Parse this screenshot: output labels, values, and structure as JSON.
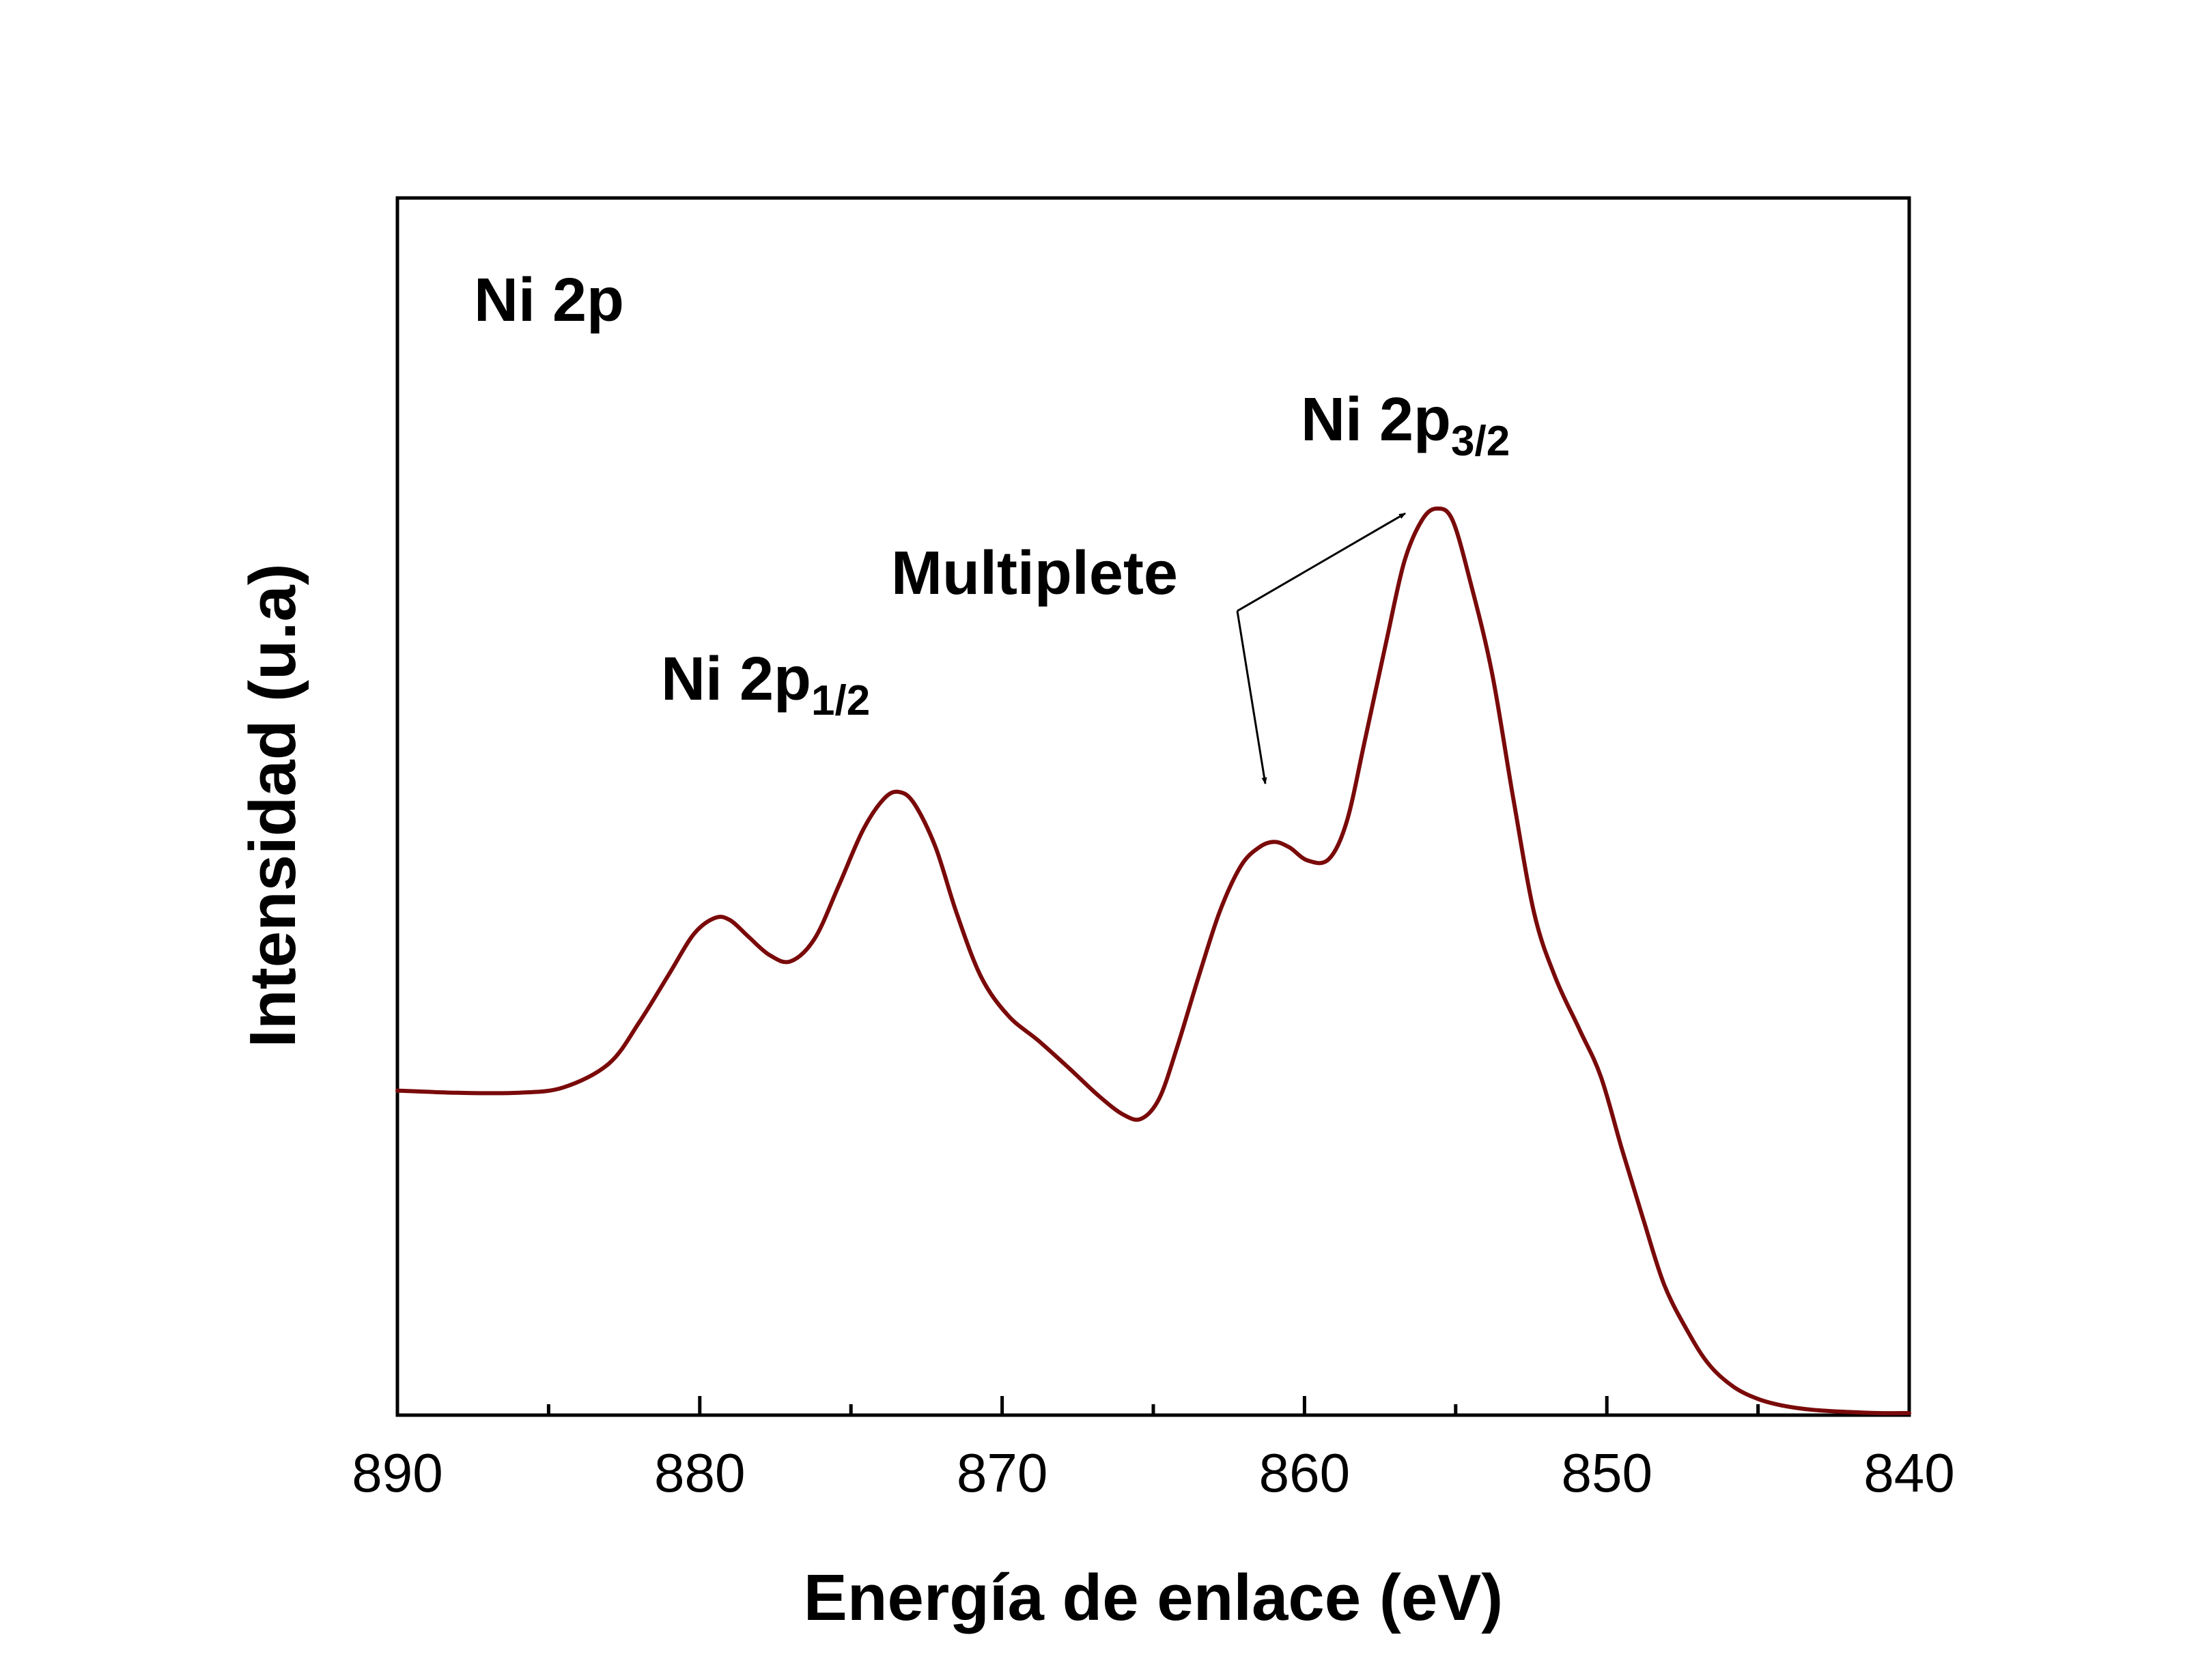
{
  "chart_data": {
    "type": "line",
    "title": "",
    "xlabel": "Energía de enlace (eV)",
    "ylabel": "Intensidad (u.a)",
    "xlim": [
      890,
      840
    ],
    "x_reversed": true,
    "y_ticks_shown": false,
    "grid": false,
    "legend": "none",
    "xticks": [
      "890",
      "880",
      "870",
      "860",
      "850",
      "840"
    ],
    "series": [
      {
        "color": "#7a0a0a",
        "x": [
          890,
          888,
          886,
          884.5,
          883,
          882,
          881,
          880.2,
          879.5,
          879,
          878.4,
          877.7,
          877,
          876.2,
          875.4,
          874.6,
          873.9,
          873.4,
          872.9,
          872.2,
          871.5,
          870.7,
          869.8,
          868.8,
          867.8,
          866.8,
          866,
          865.4,
          864.8,
          864.2,
          863.5,
          862.8,
          862.1,
          861.5,
          861,
          860.5,
          859.9,
          859.2,
          858.6,
          858,
          857.3,
          856.7,
          856.1,
          855.6,
          855.1,
          854.5,
          853.8,
          853.1,
          852.4,
          851.7,
          850.9,
          850.2,
          849.5,
          848.8,
          848.1,
          847.3,
          846.6,
          845.8,
          845,
          844.2,
          843.2,
          842,
          841,
          840
        ],
        "y": [
          0.297,
          0.295,
          0.295,
          0.3,
          0.322,
          0.36,
          0.405,
          0.441,
          0.456,
          0.454,
          0.439,
          0.422,
          0.416,
          0.437,
          0.486,
          0.537,
          0.566,
          0.572,
          0.561,
          0.521,
          0.46,
          0.402,
          0.366,
          0.343,
          0.318,
          0.292,
          0.275,
          0.271,
          0.29,
          0.338,
          0.402,
          0.462,
          0.504,
          0.521,
          0.526,
          0.521,
          0.509,
          0.51,
          0.545,
          0.62,
          0.71,
          0.784,
          0.823,
          0.833,
          0.822,
          0.764,
          0.682,
          0.567,
          0.46,
          0.401,
          0.353,
          0.31,
          0.243,
          0.179,
          0.118,
          0.074,
          0.044,
          0.024,
          0.013,
          0.007,
          0.003,
          0.001,
          0.0,
          0.0
        ]
      }
    ],
    "annotations": [
      {
        "text": "Ni 2p",
        "sub": ""
      },
      {
        "text": "Ni 2p",
        "sub": "3/2"
      },
      {
        "text": "Multiplete",
        "sub": ""
      },
      {
        "text": "Ni 2p",
        "sub": "1/2"
      }
    ]
  }
}
